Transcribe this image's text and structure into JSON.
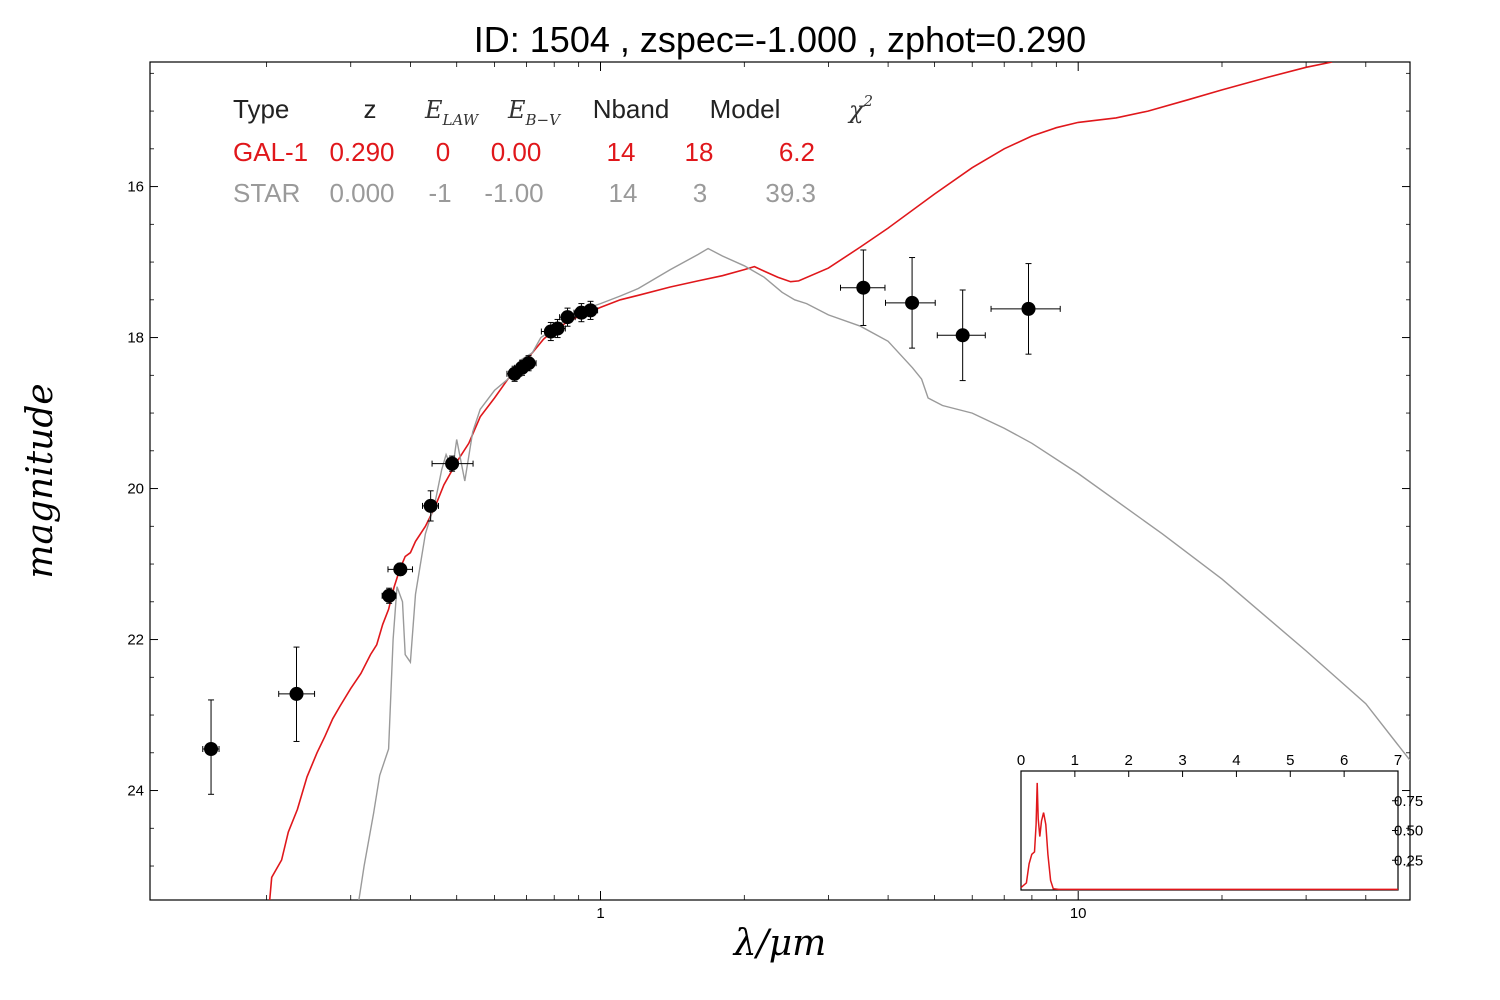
{
  "colors": {
    "galaxy": "#e0171b",
    "star": "#9a9a9a",
    "points": "#000000",
    "pdz": "#e0171b"
  },
  "chart_data": {
    "type": "scatter",
    "title": "ID:  1504  , zspec=-1.000 , zphot=0.290",
    "xlabel": "λ/μm",
    "ylabel": "magnitude",
    "x_scale": "log",
    "xlim": [
      0.114,
      49.5
    ],
    "ylim": [
      25.45,
      14.35
    ],
    "y_inverted": true,
    "x_ticks": [
      {
        "value": 1,
        "label": "1"
      },
      {
        "value": 10,
        "label": "10"
      }
    ],
    "y_ticks": [
      {
        "value": 16,
        "label": "16"
      },
      {
        "value": 18,
        "label": "18"
      },
      {
        "value": 20,
        "label": "20"
      },
      {
        "value": 22,
        "label": "22"
      },
      {
        "value": 24,
        "label": "24"
      }
    ],
    "grid": false,
    "legend_table": {
      "headers": [
        "Type",
        "z",
        "E_LAW",
        "E_B-V",
        "Nband",
        "Model",
        "χ2"
      ],
      "rows": [
        {
          "type": "GAL-1",
          "z": "0.290",
          "elaw": "0",
          "ebv": "0.00",
          "nband": "14",
          "model": "18",
          "chi2": "6.2"
        },
        {
          "type": "STAR",
          "z": "0.000",
          "elaw": "-1",
          "ebv": "-1.00",
          "nband": "14",
          "model": "3",
          "chi2": "39.3"
        }
      ]
    },
    "points": [
      {
        "x": 0.153,
        "y": 23.45,
        "xlo": 0.147,
        "xhi": 0.159,
        "ylo": 22.8,
        "yhi": 24.05
      },
      {
        "x": 0.231,
        "y": 22.72,
        "xlo": 0.212,
        "xhi": 0.252,
        "ylo": 22.1,
        "yhi": 23.35
      },
      {
        "x": 0.361,
        "y": 21.42,
        "xlo": 0.349,
        "xhi": 0.373,
        "ylo": 21.32,
        "yhi": 21.52
      },
      {
        "x": 0.381,
        "y": 21.07,
        "xlo": 0.359,
        "xhi": 0.404,
        "ylo": 20.99,
        "yhi": 21.15
      },
      {
        "x": 0.441,
        "y": 20.23,
        "xlo": 0.424,
        "xhi": 0.458,
        "ylo": 20.03,
        "yhi": 20.43
      },
      {
        "x": 0.489,
        "y": 19.67,
        "xlo": 0.444,
        "xhi": 0.541,
        "ylo": 19.57,
        "yhi": 19.77
      },
      {
        "x": 0.661,
        "y": 18.48,
        "xlo": 0.637,
        "xhi": 0.684,
        "ylo": 18.38,
        "yhi": 18.58
      },
      {
        "x": 0.685,
        "y": 18.4,
        "xlo": 0.661,
        "xhi": 0.71,
        "ylo": 18.3,
        "yhi": 18.5
      },
      {
        "x": 0.707,
        "y": 18.34,
        "xlo": 0.681,
        "xhi": 0.733,
        "ylo": 18.24,
        "yhi": 18.44
      },
      {
        "x": 0.787,
        "y": 17.92,
        "xlo": 0.752,
        "xhi": 0.82,
        "ylo": 17.8,
        "yhi": 18.04
      },
      {
        "x": 0.813,
        "y": 17.88,
        "xlo": 0.782,
        "xhi": 0.844,
        "ylo": 17.76,
        "yhi": 18.0
      },
      {
        "x": 0.853,
        "y": 17.73,
        "xlo": 0.821,
        "xhi": 0.885,
        "ylo": 17.61,
        "yhi": 17.85
      },
      {
        "x": 0.912,
        "y": 17.67,
        "xlo": 0.88,
        "xhi": 0.945,
        "ylo": 17.55,
        "yhi": 17.79
      },
      {
        "x": 0.953,
        "y": 17.64,
        "xlo": 0.919,
        "xhi": 0.986,
        "ylo": 17.52,
        "yhi": 17.76
      },
      {
        "x": 3.55,
        "y": 17.34,
        "xlo": 3.18,
        "xhi": 3.94,
        "ylo": 16.84,
        "yhi": 17.84
      },
      {
        "x": 4.49,
        "y": 17.54,
        "xlo": 3.95,
        "xhi": 5.02,
        "ylo": 16.94,
        "yhi": 18.14
      },
      {
        "x": 5.73,
        "y": 17.97,
        "xlo": 5.07,
        "xhi": 6.39,
        "ylo": 17.37,
        "yhi": 18.57
      },
      {
        "x": 7.87,
        "y": 17.62,
        "xlo": 6.57,
        "xhi": 9.17,
        "ylo": 17.02,
        "yhi": 18.22
      }
    ],
    "series": [
      {
        "key": "galaxy",
        "points": [
          [
            0.203,
            25.45
          ],
          [
            0.205,
            25.15
          ],
          [
            0.215,
            24.92
          ],
          [
            0.222,
            24.55
          ],
          [
            0.232,
            24.25
          ],
          [
            0.243,
            23.82
          ],
          [
            0.255,
            23.5
          ],
          [
            0.265,
            23.28
          ],
          [
            0.275,
            23.05
          ],
          [
            0.285,
            22.88
          ],
          [
            0.3,
            22.65
          ],
          [
            0.315,
            22.45
          ],
          [
            0.33,
            22.2
          ],
          [
            0.34,
            22.07
          ],
          [
            0.35,
            21.8
          ],
          [
            0.36,
            21.6
          ],
          [
            0.37,
            21.3
          ],
          [
            0.38,
            21.07
          ],
          [
            0.39,
            20.9
          ],
          [
            0.4,
            20.85
          ],
          [
            0.41,
            20.7
          ],
          [
            0.43,
            20.5
          ],
          [
            0.45,
            20.25
          ],
          [
            0.47,
            19.95
          ],
          [
            0.5,
            19.65
          ],
          [
            0.53,
            19.4
          ],
          [
            0.56,
            19.05
          ],
          [
            0.6,
            18.8
          ],
          [
            0.64,
            18.55
          ],
          [
            0.68,
            18.37
          ],
          [
            0.72,
            18.2
          ],
          [
            0.76,
            18.02
          ],
          [
            0.8,
            17.9
          ],
          [
            0.85,
            17.8
          ],
          [
            0.9,
            17.72
          ],
          [
            0.95,
            17.66
          ],
          [
            1.0,
            17.6
          ],
          [
            1.1,
            17.5
          ],
          [
            1.2,
            17.44
          ],
          [
            1.4,
            17.33
          ],
          [
            1.6,
            17.25
          ],
          [
            1.8,
            17.18
          ],
          [
            2.0,
            17.1
          ],
          [
            2.1,
            17.06
          ],
          [
            2.2,
            17.12
          ],
          [
            2.35,
            17.2
          ],
          [
            2.5,
            17.26
          ],
          [
            2.6,
            17.25
          ],
          [
            3.0,
            17.08
          ],
          [
            3.5,
            16.8
          ],
          [
            4.0,
            16.55
          ],
          [
            5.0,
            16.1
          ],
          [
            6.0,
            15.75
          ],
          [
            7.0,
            15.5
          ],
          [
            8.0,
            15.33
          ],
          [
            9.0,
            15.22
          ],
          [
            10.0,
            15.15
          ],
          [
            11.0,
            15.12
          ],
          [
            12.0,
            15.09
          ],
          [
            14.0,
            15.0
          ],
          [
            17.0,
            14.85
          ],
          [
            20.0,
            14.72
          ],
          [
            25.0,
            14.55
          ],
          [
            30.0,
            14.42
          ],
          [
            34.0,
            14.35
          ]
        ]
      },
      {
        "key": "star",
        "points": [
          [
            0.312,
            25.45
          ],
          [
            0.32,
            25.0
          ],
          [
            0.335,
            24.3
          ],
          [
            0.345,
            23.8
          ],
          [
            0.36,
            23.45
          ],
          [
            0.368,
            22.0
          ],
          [
            0.375,
            21.3
          ],
          [
            0.385,
            21.5
          ],
          [
            0.39,
            22.2
          ],
          [
            0.4,
            22.3
          ],
          [
            0.41,
            21.4
          ],
          [
            0.43,
            20.6
          ],
          [
            0.45,
            20.2
          ],
          [
            0.465,
            19.75
          ],
          [
            0.475,
            19.55
          ],
          [
            0.49,
            19.75
          ],
          [
            0.5,
            19.35
          ],
          [
            0.52,
            19.9
          ],
          [
            0.54,
            19.25
          ],
          [
            0.56,
            18.95
          ],
          [
            0.6,
            18.7
          ],
          [
            0.64,
            18.55
          ],
          [
            0.68,
            18.3
          ],
          [
            0.72,
            18.2
          ],
          [
            0.75,
            18.0
          ],
          [
            0.8,
            17.88
          ],
          [
            0.85,
            17.75
          ],
          [
            0.9,
            17.65
          ],
          [
            1.0,
            17.55
          ],
          [
            1.1,
            17.45
          ],
          [
            1.2,
            17.35
          ],
          [
            1.4,
            17.1
          ],
          [
            1.6,
            16.9
          ],
          [
            1.68,
            16.82
          ],
          [
            1.8,
            16.92
          ],
          [
            2.0,
            17.05
          ],
          [
            2.2,
            17.2
          ],
          [
            2.4,
            17.4
          ],
          [
            2.55,
            17.5
          ],
          [
            2.7,
            17.55
          ],
          [
            3.0,
            17.7
          ],
          [
            3.5,
            17.85
          ],
          [
            4.0,
            18.05
          ],
          [
            4.5,
            18.4
          ],
          [
            4.7,
            18.55
          ],
          [
            4.85,
            18.8
          ],
          [
            5.2,
            18.9
          ],
          [
            6.0,
            19.0
          ],
          [
            7.0,
            19.2
          ],
          [
            8.0,
            19.4
          ],
          [
            10.0,
            19.8
          ],
          [
            15.0,
            20.6
          ],
          [
            20.0,
            21.2
          ],
          [
            30.0,
            22.15
          ],
          [
            40.0,
            22.85
          ],
          [
            49.5,
            23.6
          ]
        ]
      }
    ],
    "inset": {
      "type": "line",
      "xlim": [
        0,
        7
      ],
      "ylim": [
        0,
        1.0
      ],
      "x_ticks": [
        "0",
        "1",
        "2",
        "3",
        "4",
        "5",
        "6",
        "7"
      ],
      "y_ticks": [
        {
          "value": 0.25,
          "label": "0.25"
        },
        {
          "value": 0.5,
          "label": "0.50"
        },
        {
          "value": 0.75,
          "label": "0.75"
        }
      ],
      "points": [
        [
          0.0,
          0.02
        ],
        [
          0.1,
          0.06
        ],
        [
          0.15,
          0.22
        ],
        [
          0.2,
          0.3
        ],
        [
          0.25,
          0.32
        ],
        [
          0.28,
          0.55
        ],
        [
          0.3,
          0.9
        ],
        [
          0.32,
          0.6
        ],
        [
          0.35,
          0.45
        ],
        [
          0.38,
          0.58
        ],
        [
          0.42,
          0.65
        ],
        [
          0.46,
          0.55
        ],
        [
          0.5,
          0.3
        ],
        [
          0.55,
          0.08
        ],
        [
          0.6,
          0.01
        ],
        [
          0.7,
          0.005
        ],
        [
          7.0,
          0.005
        ]
      ]
    }
  }
}
